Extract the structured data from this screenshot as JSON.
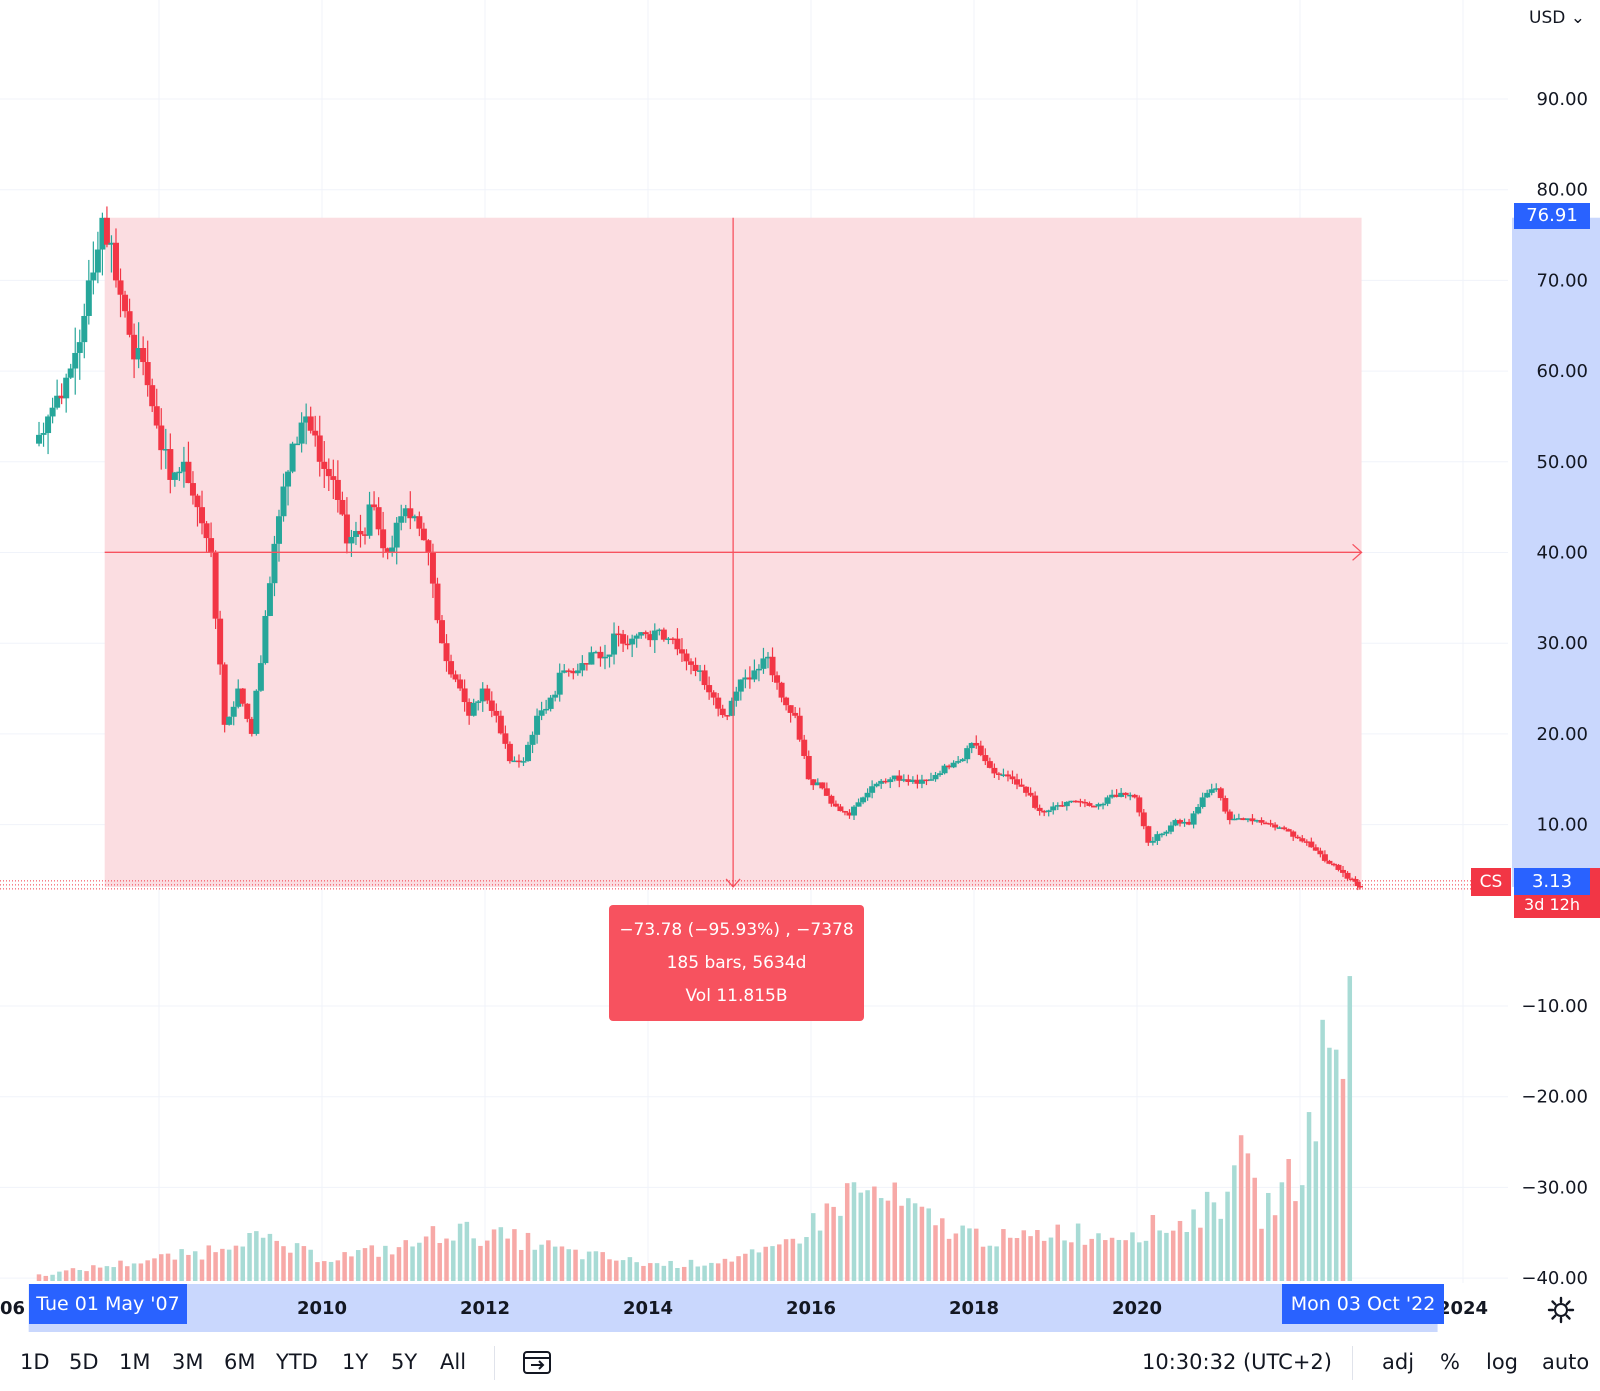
{
  "currency": {
    "label": "USD",
    "icon": "chevron-down-icon"
  },
  "symbol": {
    "ticker": "CS",
    "last_price": "3.13",
    "countdown": "3d 12h",
    "color": "#f23645"
  },
  "measure": {
    "start_price_label": "76.91",
    "change_line": "−73.78 (−95.93%) , −7378",
    "bars_line": "185 bars, 5634d",
    "vol_line": "Vol 11.815B",
    "start_date_label": "Tue 01 May '07",
    "end_date_label": "Mon 03 Oct '22",
    "color": "#f7525f",
    "fill_color": "#fbdde1"
  },
  "toolbar": {
    "ranges": [
      "1D",
      "5D",
      "1M",
      "3M",
      "6M",
      "YTD",
      "1Y",
      "5Y",
      "All"
    ],
    "compare_icon": "date-range-icon",
    "clock": "10:30:32 (UTC+2)",
    "options": [
      "adj",
      "%",
      "log",
      "auto"
    ],
    "settings_icon": "gear-icon"
  },
  "chart_data": {
    "type": "candlestick",
    "title": "",
    "up_color": "#26a69a",
    "down_color": "#f23645",
    "y_axis": {
      "ticks": [
        90,
        80,
        70,
        60,
        50,
        40,
        30,
        20,
        10,
        -10,
        -20,
        -30,
        -40
      ],
      "tick_labels": [
        "90.00",
        "80.00",
        "70.00",
        "60.00",
        "50.00",
        "40.00",
        "30.00",
        "20.00",
        "10.00",
        "−10.00",
        "−20.00",
        "−30.00",
        "−40.00"
      ],
      "range": [
        -40,
        99
      ]
    },
    "x_axis": {
      "ticks": [
        "2010",
        "2012",
        "2014",
        "2016",
        "2018",
        "2020",
        "2024"
      ],
      "range": [
        "2006-07",
        "2024-12"
      ],
      "partial_left_label": "06"
    },
    "measure_range": {
      "start_date": "2007-05-01",
      "end_date": "2022-10-03",
      "start_price": 76.91,
      "end_price": 3.13
    },
    "price_series": [
      [
        "2006-07",
        52.0
      ],
      [
        "2006-09",
        55.0
      ],
      [
        "2006-11",
        57.0
      ],
      [
        "2007-01",
        62.0
      ],
      [
        "2007-03",
        70.0
      ],
      [
        "2007-05",
        76.9
      ],
      [
        "2007-07",
        70.0
      ],
      [
        "2007-09",
        64.0
      ],
      [
        "2007-11",
        61.0
      ],
      [
        "2008-01",
        54.0
      ],
      [
        "2008-03",
        48.0
      ],
      [
        "2008-05",
        50.0
      ],
      [
        "2008-07",
        45.0
      ],
      [
        "2008-09",
        40.0
      ],
      [
        "2008-11",
        21.0
      ],
      [
        "2009-01",
        25.0
      ],
      [
        "2009-03",
        20.0
      ],
      [
        "2009-05",
        33.0
      ],
      [
        "2009-07",
        44.0
      ],
      [
        "2009-09",
        52.0
      ],
      [
        "2009-11",
        55.0
      ],
      [
        "2010-01",
        50.0
      ],
      [
        "2010-03",
        48.0
      ],
      [
        "2010-05",
        41.0
      ],
      [
        "2010-07",
        42.0
      ],
      [
        "2010-09",
        45.0
      ],
      [
        "2010-11",
        40.0
      ],
      [
        "2011-01",
        44.0
      ],
      [
        "2011-03",
        44.0
      ],
      [
        "2011-05",
        40.0
      ],
      [
        "2011-07",
        30.0
      ],
      [
        "2011-09",
        26.0
      ],
      [
        "2011-11",
        22.0
      ],
      [
        "2012-01",
        25.0
      ],
      [
        "2012-03",
        22.0
      ],
      [
        "2012-05",
        17.0
      ],
      [
        "2012-07",
        17.0
      ],
      [
        "2012-09",
        22.0
      ],
      [
        "2012-11",
        24.0
      ],
      [
        "2013-01",
        27.0
      ],
      [
        "2013-03",
        27.0
      ],
      [
        "2013-05",
        29.0
      ],
      [
        "2013-07",
        28.5
      ],
      [
        "2013-09",
        31.0
      ],
      [
        "2013-11",
        30.5
      ],
      [
        "2014-01",
        31.0
      ],
      [
        "2014-03",
        31.5
      ],
      [
        "2014-05",
        30.5
      ],
      [
        "2014-07",
        28.0
      ],
      [
        "2014-09",
        27.0
      ],
      [
        "2014-11",
        24.0
      ],
      [
        "2015-01",
        22.0
      ],
      [
        "2015-03",
        26.0
      ],
      [
        "2015-05",
        27.0
      ],
      [
        "2015-07",
        28.5
      ],
      [
        "2015-09",
        24.0
      ],
      [
        "2015-11",
        22.0
      ],
      [
        "2016-01",
        15.0
      ],
      [
        "2016-03",
        14.0
      ],
      [
        "2016-05",
        12.0
      ],
      [
        "2016-07",
        11.0
      ],
      [
        "2016-09",
        13.0
      ],
      [
        "2016-11",
        14.5
      ],
      [
        "2017-01",
        15.0
      ],
      [
        "2017-03",
        15.0
      ],
      [
        "2017-05",
        14.5
      ],
      [
        "2017-07",
        15.0
      ],
      [
        "2017-09",
        16.5
      ],
      [
        "2017-11",
        17.0
      ],
      [
        "2018-01",
        19.0
      ],
      [
        "2018-03",
        17.0
      ],
      [
        "2018-05",
        15.5
      ],
      [
        "2018-07",
        15.0
      ],
      [
        "2018-09",
        13.5
      ],
      [
        "2018-11",
        11.5
      ],
      [
        "2019-01",
        12.0
      ],
      [
        "2019-03",
        12.5
      ],
      [
        "2019-05",
        12.5
      ],
      [
        "2019-07",
        12.0
      ],
      [
        "2019-09",
        13.0
      ],
      [
        "2019-11",
        13.5
      ],
      [
        "2020-01",
        13.0
      ],
      [
        "2020-03",
        8.0
      ],
      [
        "2020-05",
        9.0
      ],
      [
        "2020-07",
        10.5
      ],
      [
        "2020-09",
        10.0
      ],
      [
        "2020-11",
        13.0
      ],
      [
        "2021-01",
        14.0
      ],
      [
        "2021-03",
        10.5
      ],
      [
        "2021-05",
        10.5
      ],
      [
        "2021-07",
        10.5
      ],
      [
        "2021-09",
        10.0
      ],
      [
        "2021-11",
        9.5
      ],
      [
        "2022-01",
        8.5
      ],
      [
        "2022-03",
        7.5
      ],
      [
        "2022-05",
        6.0
      ],
      [
        "2022-07",
        5.0
      ],
      [
        "2022-09",
        4.0
      ],
      [
        "2022-10",
        3.13
      ]
    ],
    "volume_series": [
      [
        "2006-07",
        1
      ],
      [
        "2007-01",
        2
      ],
      [
        "2007-07",
        3
      ],
      [
        "2008-01",
        4
      ],
      [
        "2008-07",
        5
      ],
      [
        "2009-01",
        8
      ],
      [
        "2009-07",
        6
      ],
      [
        "2010-01",
        4
      ],
      [
        "2010-07",
        5
      ],
      [
        "2011-01",
        6
      ],
      [
        "2011-07",
        9
      ],
      [
        "2012-01",
        8
      ],
      [
        "2012-07",
        7
      ],
      [
        "2013-01",
        5
      ],
      [
        "2013-07",
        4
      ],
      [
        "2014-01",
        3
      ],
      [
        "2014-07",
        3
      ],
      [
        "2015-01",
        4
      ],
      [
        "2015-07",
        5
      ],
      [
        "2016-01",
        10
      ],
      [
        "2016-07",
        16
      ],
      [
        "2017-01",
        14
      ],
      [
        "2017-07",
        10
      ],
      [
        "2018-01",
        8
      ],
      [
        "2018-07",
        7
      ],
      [
        "2019-01",
        9
      ],
      [
        "2019-07",
        8
      ],
      [
        "2020-01",
        9
      ],
      [
        "2020-07",
        10
      ],
      [
        "2021-01",
        14
      ],
      [
        "2021-03",
        24
      ],
      [
        "2021-07",
        12
      ],
      [
        "2022-01",
        20
      ],
      [
        "2022-04",
        38
      ],
      [
        "2022-07",
        42
      ],
      [
        "2022-09",
        55
      ]
    ]
  }
}
